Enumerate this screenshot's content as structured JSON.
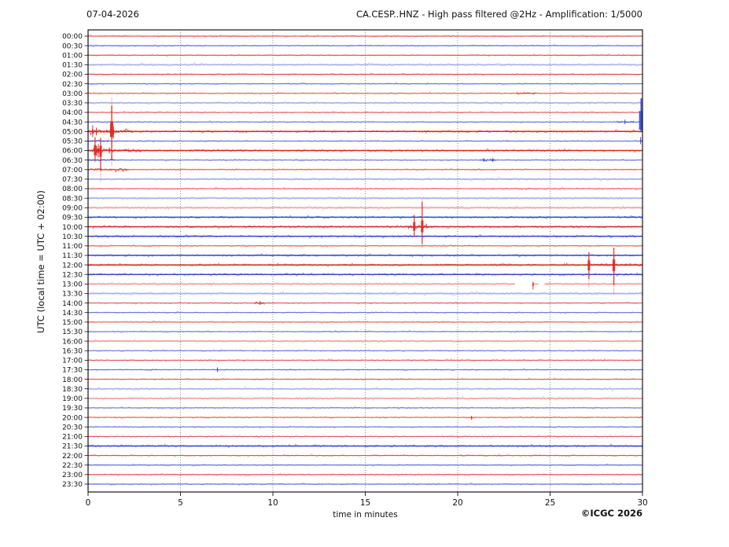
{
  "header": {
    "date": "07-04-2026",
    "station_title": "CA.CESP..HNZ - High pass filtered @2Hz - Amplification: 1/5000"
  },
  "axes": {
    "y_label": "UTC (local time = UTC + 02:00)",
    "x_label": "time in minutes",
    "x_tick_labels": [
      "0",
      "5",
      "10",
      "15",
      "20",
      "25",
      "30"
    ]
  },
  "footer": {
    "copyright": "©ICGC 2026"
  },
  "colors": {
    "red": "#df2a25",
    "blue": "#3b4ccd",
    "grid": "#666666",
    "border": "#000000",
    "text": "#111111"
  },
  "chart_data": {
    "type": "line",
    "subtype": "helicorder",
    "title": "CA.CESP..HNZ - High pass filtered @2Hz - Amplification: 1/5000",
    "date": "07-04-2026",
    "xlabel": "time in minutes",
    "ylabel": "UTC (local time = UTC + 02:00)",
    "x_range_minutes": [
      0,
      30
    ],
    "x_ticks": [
      0,
      5,
      10,
      15,
      20,
      25,
      30
    ],
    "grid_minutes": [
      5,
      10,
      15,
      20,
      25
    ],
    "minutes_per_line": 30,
    "rows": [
      {
        "time": "00:00",
        "color": "red",
        "shade": "normal"
      },
      {
        "time": "00:30",
        "color": "blue",
        "shade": "normal"
      },
      {
        "time": "01:00",
        "color": "red",
        "shade": "normal"
      },
      {
        "time": "01:30",
        "color": "blue",
        "shade": "pale"
      },
      {
        "time": "02:00",
        "color": "red",
        "shade": "normal"
      },
      {
        "time": "02:30",
        "color": "blue",
        "shade": "normal"
      },
      {
        "time": "03:00",
        "color": "red",
        "shade": "normal"
      },
      {
        "time": "03:30",
        "color": "blue",
        "shade": "pale"
      },
      {
        "time": "04:00",
        "color": "red",
        "shade": "normal"
      },
      {
        "time": "04:30",
        "color": "blue",
        "shade": "normal"
      },
      {
        "time": "05:00",
        "color": "red",
        "shade": "dark"
      },
      {
        "time": "05:30",
        "color": "blue",
        "shade": "normal"
      },
      {
        "time": "06:00",
        "color": "red",
        "shade": "dark"
      },
      {
        "time": "06:30",
        "color": "blue",
        "shade": "normal"
      },
      {
        "time": "07:00",
        "color": "red",
        "shade": "normal"
      },
      {
        "time": "07:30",
        "color": "blue",
        "shade": "pale"
      },
      {
        "time": "08:00",
        "color": "red",
        "shade": "normal"
      },
      {
        "time": "08:30",
        "color": "blue",
        "shade": "pale"
      },
      {
        "time": "09:00",
        "color": "red",
        "shade": "pale"
      },
      {
        "time": "09:30",
        "color": "blue",
        "shade": "dark"
      },
      {
        "time": "10:00",
        "color": "red",
        "shade": "dark"
      },
      {
        "time": "10:30",
        "color": "blue",
        "shade": "dark"
      },
      {
        "time": "11:00",
        "color": "red",
        "shade": "normal"
      },
      {
        "time": "11:30",
        "color": "blue",
        "shade": "dark"
      },
      {
        "time": "12:00",
        "color": "red",
        "shade": "dark"
      },
      {
        "time": "12:30",
        "color": "blue",
        "shade": "dark"
      },
      {
        "time": "13:00",
        "color": "red",
        "shade": "pale"
      },
      {
        "time": "13:30",
        "color": "blue",
        "shade": "pale"
      },
      {
        "time": "14:00",
        "color": "red",
        "shade": "normal"
      },
      {
        "time": "14:30",
        "color": "blue",
        "shade": "normal"
      },
      {
        "time": "15:00",
        "color": "red",
        "shade": "normal"
      },
      {
        "time": "15:30",
        "color": "blue",
        "shade": "normal"
      },
      {
        "time": "16:00",
        "color": "red",
        "shade": "pale"
      },
      {
        "time": "16:30",
        "color": "blue",
        "shade": "normal"
      },
      {
        "time": "17:00",
        "color": "red",
        "shade": "normal"
      },
      {
        "time": "17:30",
        "color": "blue",
        "shade": "normal"
      },
      {
        "time": "18:00",
        "color": "red",
        "shade": "normal"
      },
      {
        "time": "18:30",
        "color": "blue",
        "shade": "pale"
      },
      {
        "time": "19:00",
        "color": "red",
        "shade": "pale"
      },
      {
        "time": "19:30",
        "color": "blue",
        "shade": "normal"
      },
      {
        "time": "20:00",
        "color": "red",
        "shade": "normal"
      },
      {
        "time": "20:30",
        "color": "blue",
        "shade": "normal"
      },
      {
        "time": "21:00",
        "color": "red",
        "shade": "normal"
      },
      {
        "time": "21:30",
        "color": "blue",
        "shade": "dark"
      },
      {
        "time": "22:00",
        "color": "red",
        "shade": "normal"
      },
      {
        "time": "22:30",
        "color": "blue",
        "shade": "normal"
      },
      {
        "time": "23:00",
        "color": "red",
        "shade": "normal"
      },
      {
        "time": "23:30",
        "color": "blue",
        "shade": "normal"
      }
    ],
    "events": [
      {
        "row": "04:30",
        "t": 29.93,
        "up": 30,
        "down": 13,
        "bw": 5.5,
        "blob_up": 14,
        "blob_down": 10,
        "w": 1.8
      },
      {
        "row": "04:30",
        "t": 29.05,
        "up": 3,
        "down": 3,
        "bw": 1.5,
        "w": 1
      },
      {
        "row": "05:00",
        "t": 0.25,
        "up": 8,
        "down": 7,
        "bw": 1.8,
        "w": 1
      },
      {
        "row": "05:00",
        "t": 0.45,
        "up": 5,
        "down": 5,
        "bw": 1.5,
        "w": 1
      },
      {
        "row": "05:00",
        "t": 1.22,
        "up": 9,
        "down": 7,
        "bw": 2,
        "w": 1
      },
      {
        "row": "05:00",
        "t": 1.28,
        "up": 33,
        "down": 36,
        "bw": 4,
        "blob_up": 13,
        "blob_down": 7,
        "tail_up": 10,
        "tail_down": 8,
        "w": 1.3
      },
      {
        "row": "05:00",
        "t": 1.37,
        "up": 7,
        "down": 9,
        "bw": 2,
        "w": 1
      },
      {
        "row": "05:30",
        "t": 29.9,
        "up": 5,
        "down": 4,
        "bw": 1.6,
        "w": 1
      },
      {
        "row": "06:00",
        "t": 0.38,
        "up": 17,
        "down": 14,
        "bw": 3,
        "blob_up": 7,
        "blob_down": 6,
        "w": 1.2
      },
      {
        "row": "06:00",
        "t": 0.47,
        "up": 6,
        "down": 7,
        "bw": 2,
        "w": 1
      },
      {
        "row": "06:00",
        "t": 0.56,
        "up": 8,
        "down": 9,
        "bw": 2.2,
        "w": 1
      },
      {
        "row": "06:00",
        "t": 0.68,
        "up": 16,
        "down": 26,
        "bw": 3,
        "blob_up": 6,
        "blob_down": 8,
        "tail_down": 14,
        "w": 1.2
      },
      {
        "row": "06:00",
        "t": 1.15,
        "up": 4,
        "down": 4,
        "bw": 1.6,
        "w": 1
      },
      {
        "row": "06:30",
        "t": 21.42,
        "up": 2.5,
        "down": 2.5,
        "bw": 2.6,
        "w": 1
      },
      {
        "row": "06:30",
        "t": 21.9,
        "up": 2.5,
        "down": 2.5,
        "bw": 2.6,
        "w": 1
      },
      {
        "row": "10:00",
        "t": 17.65,
        "up": 15,
        "down": 13,
        "bw": 3,
        "blob_up": 6,
        "blob_down": 5,
        "w": 1.2
      },
      {
        "row": "10:00",
        "t": 18.08,
        "up": 32,
        "down": 22,
        "bw": 3.2,
        "blob_up": 8,
        "blob_down": 7,
        "tail_up": 3,
        "tail_down": 5,
        "w": 1.2
      },
      {
        "row": "12:00",
        "t": 27.1,
        "up": 16,
        "down": 18,
        "bw": 3,
        "blob_up": 6,
        "blob_down": 7,
        "tail_down": 11,
        "w": 1.2
      },
      {
        "row": "12:00",
        "t": 28.45,
        "up": 22,
        "down": 26,
        "bw": 3.4,
        "blob_up": 7,
        "blob_down": 8,
        "tail_down": 12,
        "w": 1.2
      },
      {
        "row": "13:00",
        "t": 24.08,
        "up": 3,
        "down": 7,
        "bw": 1.6,
        "w": 1
      },
      {
        "row": "14:00",
        "t": 9.3,
        "up": 2.5,
        "down": 2.5,
        "bw": 2,
        "w": 1
      },
      {
        "row": "17:30",
        "t": 7.0,
        "up": 3,
        "down": 3,
        "bw": 1.8,
        "w": 1
      },
      {
        "row": "20:00",
        "t": 20.75,
        "up": 2,
        "down": 3,
        "bw": 1.4,
        "w": 1
      }
    ],
    "noise_bursts": [
      {
        "row": "03:00",
        "t0": 23.2,
        "t1": 24.3,
        "amp": 0.9
      },
      {
        "row": "04:30",
        "t0": 28.6,
        "t1": 29.6,
        "amp": 1.2
      },
      {
        "row": "05:00",
        "t0": 0.05,
        "t1": 2.4,
        "amp": 2.2
      },
      {
        "row": "05:30",
        "t0": 0.0,
        "t1": 1.2,
        "amp": 1.0
      },
      {
        "row": "06:00",
        "t0": 0.1,
        "t1": 2.9,
        "amp": 1.8
      },
      {
        "row": "06:30",
        "t0": 0.0,
        "t1": 1.5,
        "amp": 1.0
      },
      {
        "row": "06:30",
        "t0": 21.2,
        "t1": 22.1,
        "amp": 1.1
      },
      {
        "row": "07:00",
        "t0": 0.0,
        "t1": 2.2,
        "amp": 1.5
      },
      {
        "row": "10:00",
        "t0": 17.3,
        "t1": 18.6,
        "amp": 1.8
      },
      {
        "row": "12:00",
        "t0": 26.8,
        "t1": 30.0,
        "amp": 1.2
      },
      {
        "row": "14:00",
        "t0": 9.0,
        "t1": 9.6,
        "amp": 1.2
      }
    ],
    "gaps": [
      {
        "row": "13:00",
        "ranges": [
          [
            23.1,
            24.04
          ],
          [
            24.38,
            24.7
          ]
        ]
      }
    ]
  }
}
